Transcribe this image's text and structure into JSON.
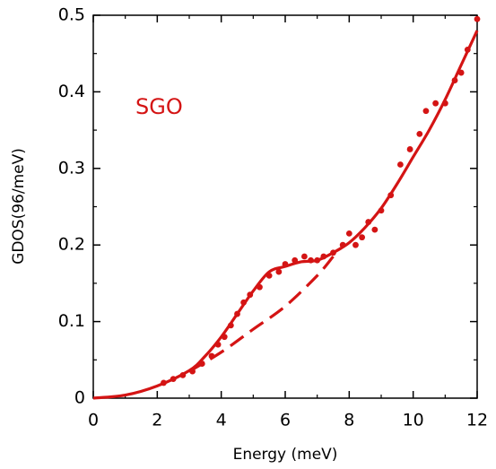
{
  "chart_data": {
    "type": "scatter",
    "title": "",
    "xlabel": "Energy (meV)",
    "ylabel": "GDOS(96/meV)",
    "xlim": [
      0,
      12
    ],
    "ylim": [
      0,
      0.5
    ],
    "x_ticks": [
      0,
      2,
      4,
      6,
      8,
      10,
      12
    ],
    "y_ticks": [
      0,
      0.1,
      0.2,
      0.3,
      0.4,
      0.5
    ],
    "x_tick_labels": [
      "0",
      "2",
      "4",
      "6",
      "8",
      "10",
      "12"
    ],
    "y_tick_labels": [
      "0",
      "0.1",
      "0.2",
      "0.3",
      "0.4",
      "0.5"
    ],
    "grid": false,
    "annotation": {
      "text": "SGO",
      "color": "#d41414"
    },
    "series": [
      {
        "kind": "points",
        "color": "#d41414",
        "x": [
          2.2,
          2.5,
          2.8,
          3.1,
          3.4,
          3.7,
          3.9,
          4.1,
          4.3,
          4.5,
          4.7,
          4.9,
          5.2,
          5.5,
          5.8,
          6.0,
          6.3,
          6.6,
          6.8,
          7.0,
          7.2,
          7.5,
          7.8,
          8.0,
          8.2,
          8.4,
          8.6,
          8.8,
          9.0,
          9.3,
          9.6,
          9.9,
          10.2,
          10.4,
          10.7,
          11.0,
          11.3,
          11.5,
          11.7,
          12.0
        ],
        "y": [
          0.02,
          0.025,
          0.03,
          0.035,
          0.045,
          0.055,
          0.07,
          0.08,
          0.095,
          0.11,
          0.125,
          0.135,
          0.145,
          0.16,
          0.165,
          0.175,
          0.18,
          0.185,
          0.18,
          0.18,
          0.185,
          0.19,
          0.2,
          0.215,
          0.2,
          0.21,
          0.23,
          0.22,
          0.245,
          0.265,
          0.305,
          0.325,
          0.345,
          0.375,
          0.385,
          0.385,
          0.415,
          0.425,
          0.455,
          0.495
        ]
      },
      {
        "kind": "line",
        "style": "solid",
        "color": "#d41414",
        "x": [
          0,
          1,
          2,
          3,
          3.5,
          4,
          4.5,
          5,
          5.5,
          6,
          6.5,
          7,
          7.5,
          8,
          8.5,
          9,
          9.5,
          10,
          10.5,
          11,
          11.5,
          12
        ],
        "y": [
          0,
          0.004,
          0.016,
          0.036,
          0.055,
          0.08,
          0.11,
          0.14,
          0.165,
          0.172,
          0.178,
          0.18,
          0.19,
          0.203,
          0.223,
          0.248,
          0.28,
          0.315,
          0.35,
          0.39,
          0.435,
          0.48
        ]
      },
      {
        "kind": "line",
        "style": "dashed",
        "color": "#d41414",
        "x": [
          3.0,
          4.0,
          5.0,
          6.0,
          7.0,
          7.5
        ],
        "y": [
          0.035,
          0.06,
          0.09,
          0.12,
          0.16,
          0.185
        ]
      }
    ]
  }
}
